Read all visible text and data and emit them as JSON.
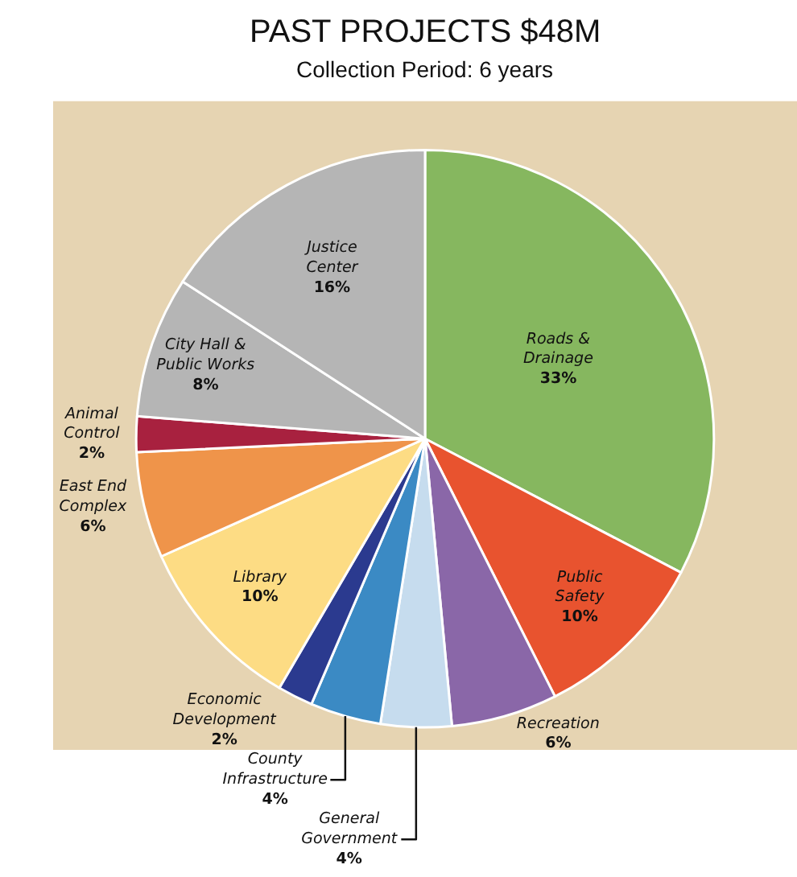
{
  "chart_data": {
    "type": "pie",
    "title": "PAST PROJECTS $48M",
    "subtitle": "Collection Period: 6 years",
    "categories": [
      "Roads & Drainage",
      "Public Safety",
      "Recreation",
      "General Government",
      "County Infrastructure",
      "Economic Development",
      "Library",
      "East End Complex",
      "Animal Control",
      "City Hall & Public Works",
      "Justice Center"
    ],
    "values": [
      33,
      10,
      6,
      4,
      4,
      2,
      10,
      6,
      2,
      8,
      16
    ],
    "value_labels": [
      "33%",
      "10%",
      "6%",
      "4%",
      "4%",
      "2%",
      "10%",
      "6%",
      "2%",
      "8%",
      "16%"
    ],
    "colors": [
      "#86b75f",
      "#e8532f",
      "#8a67a8",
      "#c6dcee",
      "#3b8ac4",
      "#2b3a8f",
      "#fddc84",
      "#ef944a",
      "#a8213f",
      "#b5b5b5",
      "#b5b5b5"
    ]
  }
}
